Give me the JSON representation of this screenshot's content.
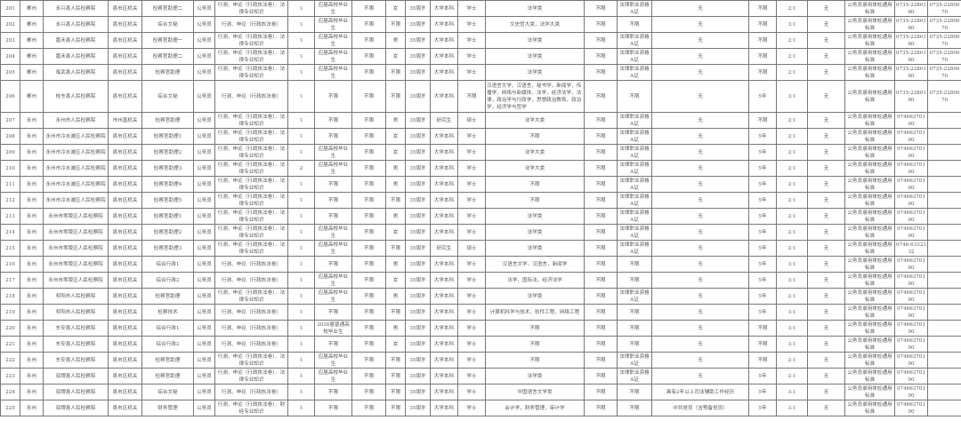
{
  "rows": [
    [
      "201",
      "郴州",
      "永兴县人民检察院",
      "县市区机关",
      "检察官助理二",
      "公务员",
      "行测、申论（行政执法卷）、法律专业知识",
      "1",
      "应届高校毕业生",
      "不限",
      "女",
      "35周岁",
      "大学本科",
      "学士",
      "法学类",
      "不限",
      "法律职业资格A证",
      "无",
      "不限",
      "2:1",
      "无",
      "公务员录用体检通用标准",
      "0735-2280180",
      "0735-2280070"
    ],
    [
      "202",
      "郴州",
      "永兴县人民检察院",
      "县市区机关",
      "综合文秘",
      "公务员",
      "行测、申论（行政执法卷）",
      "1",
      "应届高校毕业生",
      "不限",
      "不限",
      "35周岁",
      "大学本科",
      "学士",
      "文史哲大类，法学大类",
      "不限",
      "不限",
      "无",
      "不限",
      "3:1",
      "无",
      "公务员录用体检通用标准",
      "0735-2280180",
      "0735-2280070"
    ],
    [
      "203",
      "郴州",
      "嘉禾县人民检察院",
      "县市区机关",
      "检察官助理一",
      "公务员",
      "行测、申论（行政执法卷）、法律专业知识",
      "1",
      "应届高校毕业生",
      "不限",
      "男",
      "35周岁",
      "大学本科",
      "学士",
      "法学类",
      "不限",
      "法律职业资格A证",
      "无",
      "不限",
      "2:1",
      "无",
      "公务员录用体检通用标准",
      "0735-2280180",
      "0735-2280070"
    ],
    [
      "204",
      "郴州",
      "嘉禾县人民检察院",
      "县市区机关",
      "检察官助理二",
      "公务员",
      "行测、申论（行政执法卷）、法律专业知识",
      "1",
      "应届高校毕业生",
      "不限",
      "女",
      "35周岁",
      "大学本科",
      "学士",
      "法学类",
      "不限",
      "法律职业资格A证",
      "无",
      "不限",
      "2:1",
      "无",
      "公务员录用体检通用标准",
      "0735-2280180",
      "0735-2280070"
    ],
    [
      "205",
      "郴州",
      "临武县人民检察院",
      "县市区机关",
      "检察官助理",
      "公务员",
      "行测、申论（行政执法卷）、法律专业知识",
      "1",
      "应届高校毕业生",
      "不限",
      "不限",
      "35周岁",
      "大学本科",
      "学士",
      "法学类",
      "不限",
      "法律职业资格A证",
      "无",
      "不限",
      "2:1",
      "无",
      "公务员录用体检通用标准",
      "0735-2280180",
      "0735-2280070"
    ],
    [
      "206",
      "郴州",
      "桂东县人民检察院",
      "县市区机关",
      "综合文秘",
      "公务员",
      "行测、申论（行政执法卷）",
      "1",
      "不限",
      "不限",
      "不限",
      "35周岁",
      "大学本科",
      "不限",
      "汉语言文学，汉语言，秘书学，新闻学，传播学，网络与新媒体，法学，经济法学，法律，政治学与行政学，思想政治教育，政治学，经济学与哲学",
      "不限",
      "不限",
      "无",
      "5年",
      "3:1",
      "无",
      "公务员录用体检通用标准",
      "0735-2280180",
      "0735-2280070"
    ],
    [
      "207",
      "永州",
      "永州市人民检察院",
      "市州直机关",
      "检察官助理",
      "公务员",
      "行测、申论（行政执法卷）、法律专业知识",
      "1",
      "不限",
      "不限",
      "男",
      "35周岁",
      "研究生",
      "硕士",
      "法学大类",
      "不限",
      "法律职业资格A证",
      "无",
      "不限",
      "2:1",
      "无",
      "公务员录用体检通用标准",
      "07466370100",
      ""
    ],
    [
      "208",
      "永州",
      "永州市冷水滩区人民检察院",
      "县市区机关",
      "检察官助理1",
      "公务员",
      "行测、申论（行政执法卷）、法律专业知识",
      "1",
      "不限",
      "不限",
      "女",
      "35周岁",
      "大学本科",
      "学士",
      "不限",
      "不限",
      "法律职业资格A证",
      "无",
      "5年",
      "2:1",
      "无",
      "公务员录用体检通用标准",
      "07466370100",
      ""
    ],
    [
      "209",
      "永州",
      "永州市冷水滩区人民检察院",
      "县市区机关",
      "检察官助理2",
      "公务员",
      "行测、申论（行政执法卷）、法律专业知识",
      "1",
      "应届高校毕业生",
      "不限",
      "女",
      "35周岁",
      "大学本科",
      "学士",
      "法学大类",
      "不限",
      "法律职业资格A证",
      "无",
      "5年",
      "2:1",
      "无",
      "公务员录用体检通用标准",
      "07466370100",
      ""
    ],
    [
      "210",
      "永州",
      "永州市冷水滩区人民检察院",
      "县市区机关",
      "检察官助理3",
      "公务员",
      "行测、申论（行政执法卷）、法律专业知识",
      "2",
      "应届高校毕业生",
      "不限",
      "男",
      "35周岁",
      "大学本科",
      "学士",
      "法学大类",
      "不限",
      "法律职业资格A证",
      "无",
      "5年",
      "2:1",
      "无",
      "公务员录用体检通用标准",
      "07466370100",
      ""
    ],
    [
      "211",
      "永州",
      "永州市冷水滩区人民检察院",
      "县市区机关",
      "检察官助理4",
      "公务员",
      "行测、申论（行政执法卷）、法律专业知识",
      "1",
      "不限",
      "不限",
      "男",
      "35周岁",
      "大学本科",
      "学士",
      "不限",
      "不限",
      "法律职业资格A证",
      "无",
      "5年",
      "2:1",
      "无",
      "公务员录用体检通用标准",
      "07466370100",
      ""
    ],
    [
      "212",
      "永州",
      "永州市冷水滩区人民检察院",
      "县市区机关",
      "检察官助理5",
      "公务员",
      "行测、申论（行政执法卷）、法律专业知识",
      "1",
      "不限",
      "不限",
      "不限",
      "35周岁",
      "大学本科",
      "学士",
      "不限",
      "不限",
      "法律职业资格A证",
      "无",
      "5年",
      "2:1",
      "无",
      "公务员录用体检通用标准",
      "07466370100",
      ""
    ],
    [
      "213",
      "永州",
      "永州市零陵区人民检察院",
      "县市区机关",
      "检察官助理1",
      "公务员",
      "行测、申论（行政执法卷）、法律专业知识",
      "1",
      "不限",
      "不限",
      "男",
      "35周岁",
      "大学本科",
      "学士",
      "法学类",
      "不限",
      "法律职业资格A证",
      "无",
      "5年",
      "2:1",
      "无",
      "公务员录用体检通用标准",
      "07466370100",
      ""
    ],
    [
      "214",
      "永州",
      "永州市零陵区人民检察院",
      "县市区机关",
      "检察官助理2",
      "公务员",
      "行测、申论（行政执法卷）、法律专业知识",
      "1",
      "应届高校毕业生",
      "不限",
      "女",
      "35周岁",
      "大学本科",
      "学士",
      "法学类",
      "不限",
      "法律职业资格A证",
      "无",
      "5年",
      "2:1",
      "无",
      "公务员录用体检通用标准",
      "07466370100",
      ""
    ],
    [
      "215",
      "永州",
      "永州市零陵区人民检察院",
      "县市区机关",
      "检察官助理3",
      "公务员",
      "行测、申论（行政执法卷）、法律专业知识",
      "1",
      "应届高校毕业生",
      "不限",
      "不限",
      "35周岁",
      "研究生",
      "硕士",
      "法学类",
      "不限",
      "法律职业资格A证",
      "无",
      "5年",
      "2:1",
      "无",
      "公务员录用体检通用标准",
      "0746-6332332",
      ""
    ],
    [
      "216",
      "永州",
      "永州市零陵区人民检察院",
      "县市区机关",
      "综合行政1",
      "公务员",
      "行测、申论（行政执法卷）",
      "1",
      "不限",
      "不限",
      "男",
      "35周岁",
      "大学本科",
      "学士",
      "汉语言文学，汉语言，新闻学",
      "不限",
      "不限",
      "无",
      "5年",
      "3:1",
      "无",
      "公务员录用体检通用标准",
      "07466370100",
      ""
    ],
    [
      "217",
      "永州",
      "永州市零陵区人民检察院",
      "县市区机关",
      "综合行政2",
      "公务员",
      "行测、申论（行政执法卷）",
      "1",
      "应届高校毕业生",
      "不限",
      "女",
      "35周岁",
      "大学本科",
      "学士",
      "法学，国际法，经济法学",
      "不限",
      "不限",
      "无",
      "5年",
      "3:1",
      "无",
      "公务员录用体检通用标准",
      "07466370100",
      ""
    ],
    [
      "218",
      "永州",
      "祁阳市人民检察院",
      "县市区机关",
      "检察官助理",
      "公务员",
      "行测、申论（行政执法卷）、法律专业知识",
      "1",
      "应届高校毕业生",
      "不限",
      "男",
      "35周岁",
      "大学本科",
      "学士",
      "法学类",
      "不限",
      "法律职业资格A证",
      "无",
      "5年",
      "2:1",
      "无",
      "公务员录用体检通用标准",
      "07466370100",
      ""
    ],
    [
      "219",
      "永州",
      "祁阳市人民检察院",
      "县市区机关",
      "检察技术",
      "公务员",
      "行测、申论（行政执法卷）",
      "1",
      "不限",
      "不限",
      "不限",
      "35周岁",
      "大学本科",
      "学士",
      "计算机科学与技术，软件工程，网络工程",
      "不限",
      "不限",
      "无",
      "5年",
      "3:1",
      "无",
      "公务员录用体检通用标准",
      "07466370100",
      ""
    ],
    [
      "220",
      "永州",
      "东安县人民检察院",
      "县市区机关",
      "综合行政1",
      "公务员",
      "行测、申论（行政执法卷）",
      "1",
      "2026届普通高校毕业生",
      "不限",
      "男",
      "35周岁",
      "大学本科",
      "学士",
      "不限",
      "不限",
      "不限",
      "无",
      "不限",
      "3:1",
      "无",
      "公务员录用体检通用标准",
      "07466370100",
      ""
    ],
    [
      "221",
      "永州",
      "东安县人民检察院",
      "县市区机关",
      "综合行政2",
      "公务员",
      "行测、申论（行政执法卷）",
      "1",
      "不限",
      "不限",
      "女",
      "35周岁",
      "大学本科",
      "学士",
      "不限",
      "不限",
      "不限",
      "无",
      "不限",
      "3:1",
      "无",
      "公务员录用体检通用标准",
      "07466370100",
      ""
    ],
    [
      "222",
      "永州",
      "东安县人民检察院",
      "县市区机关",
      "检察官助理",
      "公务员",
      "行测、申论（行政执法卷）、法律专业知识",
      "1",
      "应届高校毕业生",
      "不限",
      "不限",
      "35周岁",
      "大学本科",
      "学士",
      "不限",
      "不限",
      "法律职业资格A证",
      "无",
      "不限",
      "2:1",
      "无",
      "公务员录用体检通用标准",
      "07466370100",
      ""
    ],
    [
      "223",
      "永州",
      "双牌县人民检察院",
      "县市区机关",
      "检察官助理",
      "公务员",
      "行测、申论（行政执法卷）、法律专业知识",
      "1",
      "应届高校毕业生",
      "不限",
      "不限",
      "35周岁",
      "大学本科",
      "学士",
      "法学类",
      "不限",
      "法律职业资格A证",
      "无",
      "5年",
      "2:1",
      "无",
      "公务员录用体检通用标准",
      "07466370100",
      ""
    ],
    [
      "224",
      "永州",
      "双牌县人民检察院",
      "县市区机关",
      "综合文秘",
      "公务员",
      "行测、申论（行政执法卷）",
      "1",
      "不限",
      "不限",
      "不限",
      "35周岁",
      "大学本科",
      "学士",
      "中国语言文学类",
      "不限",
      "不限",
      "具有2年以上司法辅助工作经历",
      "5年",
      "3:1",
      "无",
      "公务员录用体检通用标准",
      "07466370100",
      ""
    ],
    [
      "225",
      "永州",
      "双牌县人民检察院",
      "县市区机关",
      "财务管理",
      "公务员",
      "行测、申论（行政执法卷）、财经专业知识",
      "1",
      "不限",
      "不限",
      "不限",
      "35周岁",
      "大学本科",
      "学士",
      "会计学，财务管理，审计学",
      "不限",
      "不限",
      "中共党员（含预备党员）",
      "5年",
      "3:1",
      "无",
      "公务员录用体检通用标准",
      "07466370100",
      ""
    ]
  ]
}
